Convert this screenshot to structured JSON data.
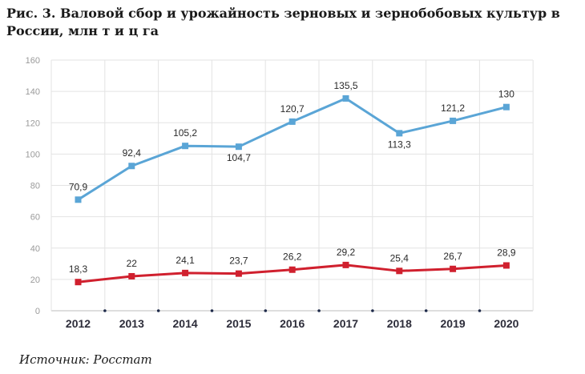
{
  "title": "Рис. 3. Валовой сбор и урожайность зерновых и зернобобовых культур в России, млн т и ц га",
  "source": "Источник: Росстат",
  "colors": {
    "series1": "#5aa5d6",
    "series2": "#d0202e",
    "grid": "#e3e3e3",
    "axis": "#bdbdbd",
    "dot": "#1e2a4a"
  },
  "chart_data": {
    "type": "line",
    "categories": [
      "2012",
      "2013",
      "2014",
      "2015",
      "2016",
      "2017",
      "2018",
      "2019",
      "2020"
    ],
    "series": [
      {
        "values": [
          70.9,
          92.4,
          105.2,
          104.7,
          120.7,
          135.5,
          113.3,
          121.2,
          130
        ],
        "labels": [
          "70,9",
          "92,4",
          "105,2",
          "104,7",
          "120,7",
          "135,5",
          "113,3",
          "121,2",
          "130"
        ],
        "color": "#5aa5d6"
      },
      {
        "values": [
          18.3,
          22,
          24.1,
          23.7,
          26.2,
          29.2,
          25.4,
          26.7,
          28.9
        ],
        "labels": [
          "18,3",
          "22",
          "24,1",
          "23,7",
          "26,2",
          "29,2",
          "25,4",
          "26,7",
          "28,9"
        ],
        "color": "#d0202e"
      }
    ],
    "yticks": [
      "0",
      "20",
      "40",
      "60",
      "80",
      "100",
      "120",
      "140",
      "160"
    ],
    "ylim": [
      0,
      160
    ],
    "grid": true
  }
}
